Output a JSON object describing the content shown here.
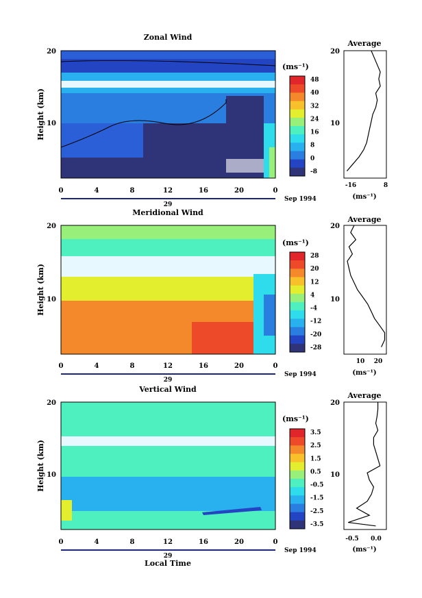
{
  "figure": {
    "xlabel": "Local Time",
    "date_label": "Sep 1994",
    "day_label": "29"
  },
  "panels": [
    {
      "title": "Zonal Wind",
      "ylabel": "Height (km)",
      "x_ticks": [
        "0",
        "4",
        "8",
        "12",
        "16",
        "20",
        "0"
      ],
      "y_ticks": [
        "20",
        "10"
      ],
      "cbar_unit": "(ms⁻¹)",
      "cbar_ticks": [
        "48",
        "40",
        "32",
        "24",
        "16",
        "8",
        "0",
        "-8"
      ],
      "avg_title": "Average",
      "avg_x_ticks": [
        "-16",
        "8"
      ],
      "avg_unit": "(ms⁻¹)"
    },
    {
      "title": "Meridional Wind",
      "ylabel": "Height (km)",
      "x_ticks": [
        "0",
        "4",
        "8",
        "12",
        "16",
        "20",
        "0"
      ],
      "y_ticks": [
        "20",
        "10"
      ],
      "cbar_unit": "(ms⁻¹)",
      "cbar_ticks": [
        "28",
        "20",
        "12",
        "4",
        "-4",
        "-12",
        "-20",
        "-28"
      ],
      "avg_title": "Average",
      "avg_x_ticks": [
        "10",
        "20"
      ],
      "avg_unit": "(ms⁻¹)"
    },
    {
      "title": "Vertical Wind",
      "ylabel": "Height (km)",
      "x_ticks": [
        "0",
        "4",
        "8",
        "12",
        "16",
        "20",
        "0"
      ],
      "y_ticks": [
        "20",
        "10"
      ],
      "cbar_unit": "(ms⁻¹)",
      "cbar_ticks": [
        "3.5",
        "2.5",
        "1.5",
        "0.5",
        "-0.5",
        "-1.5",
        "-2.5",
        "-3.5"
      ],
      "avg_title": "Average",
      "avg_x_ticks": [
        "-0.5",
        "0.0"
      ],
      "avg_unit": "(ms⁻¹)"
    }
  ],
  "colors": {
    "scale": [
      "#2f3377",
      "#2345c4",
      "#2a7ee0",
      "#29b0ef",
      "#2fdcec",
      "#4ff0c0",
      "#98f07a",
      "#e3ee2f",
      "#f8c02a",
      "#f3892a",
      "#ed4a2a",
      "#e0262a"
    ]
  },
  "chart_data": [
    {
      "type": "heatmap",
      "title": "Zonal Wind",
      "xlabel": "Local Time",
      "ylabel": "Height (km)",
      "xlim": [
        0,
        24
      ],
      "ylim": [
        2,
        20
      ],
      "x_ticks": [
        0,
        4,
        8,
        12,
        16,
        20,
        24
      ],
      "levels": [
        -8,
        0,
        8,
        16,
        24,
        32,
        40,
        48
      ],
      "profile": {
        "title": "Average",
        "xlim": [
          -20,
          8
        ],
        "heights": [
          3,
          4,
          5,
          6,
          7,
          8,
          9,
          10,
          11,
          12,
          13,
          14,
          15,
          16,
          17,
          18,
          19,
          20
        ],
        "values": [
          -18,
          -14,
          -10,
          -7,
          -5,
          -4,
          -3,
          -2,
          -1,
          1,
          2,
          1,
          4,
          3,
          4,
          2,
          0,
          -2
        ]
      }
    },
    {
      "type": "heatmap",
      "title": "Meridional Wind",
      "xlabel": "Local Time",
      "ylabel": "Height (km)",
      "xlim": [
        0,
        24
      ],
      "ylim": [
        2,
        20
      ],
      "x_ticks": [
        0,
        4,
        8,
        12,
        16,
        20,
        24
      ],
      "levels": [
        -28,
        -20,
        -12,
        -4,
        4,
        12,
        20,
        28
      ],
      "profile": {
        "title": "Average",
        "xlim": [
          0,
          25
        ],
        "heights": [
          3,
          4,
          5,
          6,
          7,
          8,
          9,
          10,
          11,
          12,
          13,
          14,
          15,
          16,
          17,
          18,
          19,
          20
        ],
        "values": [
          22,
          24,
          24,
          21,
          18,
          16,
          14,
          11,
          8,
          6,
          4,
          3,
          2,
          5,
          3,
          7,
          4,
          6
        ]
      }
    },
    {
      "type": "heatmap",
      "title": "Vertical Wind",
      "xlabel": "Local Time",
      "ylabel": "Height (km)",
      "xlim": [
        0,
        24
      ],
      "ylim": [
        2,
        20
      ],
      "x_ticks": [
        0,
        4,
        8,
        12,
        16,
        20,
        24
      ],
      "levels": [
        -3.5,
        -2.5,
        -1.5,
        -0.5,
        0.5,
        1.5,
        2.5,
        3.5
      ],
      "profile": {
        "title": "Average",
        "xlim": [
          -0.8,
          0.2
        ],
        "heights": [
          2.5,
          3,
          4,
          5,
          6,
          7,
          8,
          9,
          10,
          11,
          12,
          13,
          14,
          15,
          16,
          17,
          18,
          19,
          20
        ],
        "values": [
          -0.05,
          -0.7,
          -0.2,
          -0.5,
          -0.25,
          -0.15,
          -0.1,
          -0.2,
          -0.25,
          0.05,
          0.0,
          -0.05,
          -0.1,
          -0.1,
          0.0,
          -0.05,
          -0.02,
          0.0,
          0.0
        ]
      }
    }
  ]
}
